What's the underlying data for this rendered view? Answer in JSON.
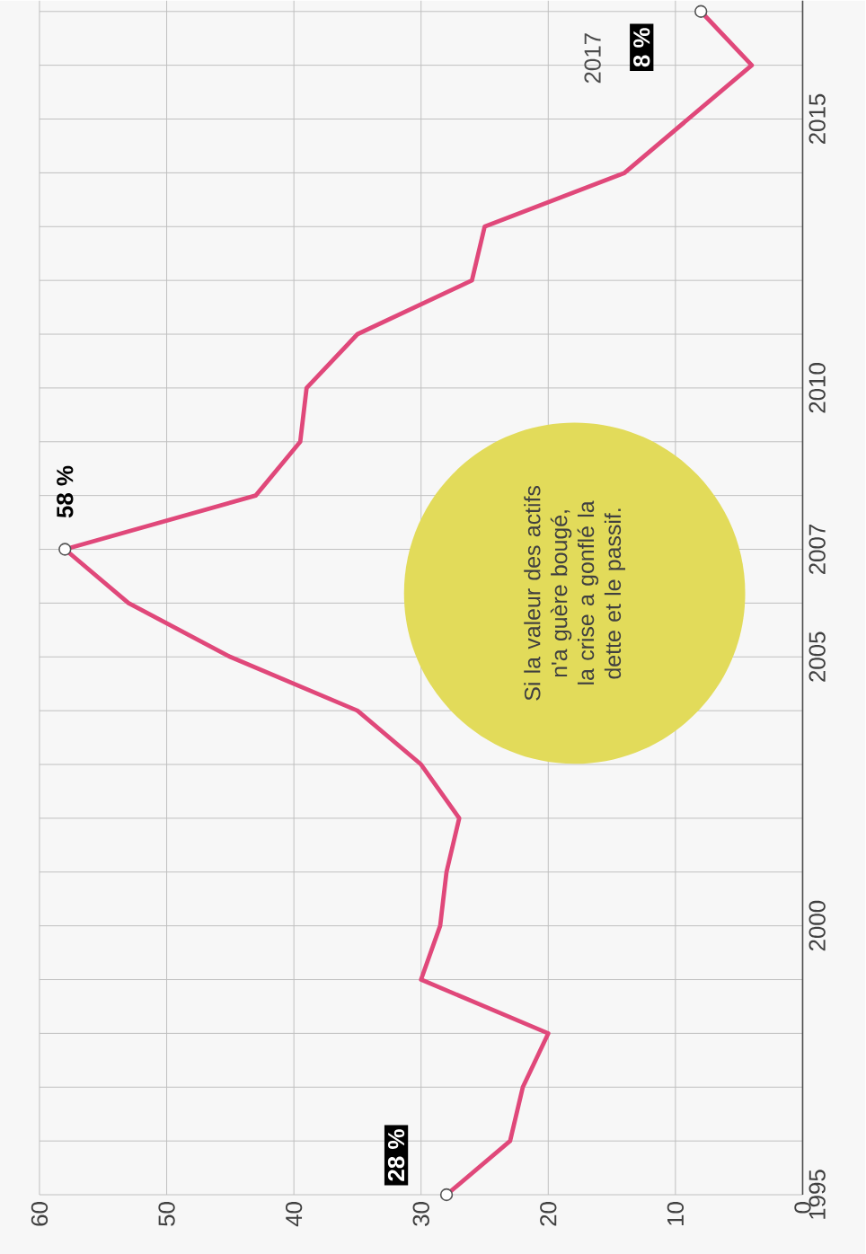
{
  "chart_data": {
    "type": "line",
    "x": [
      28,
      23,
      22,
      20,
      30,
      28.5,
      28,
      27,
      30,
      35,
      45,
      53,
      58,
      43,
      39.5,
      39,
      35,
      26,
      25,
      14,
      9,
      4,
      8
    ],
    "series": [
      {
        "color": "#e0487a",
        "values": [
          1995,
          1996,
          1997,
          1998,
          1999,
          2000,
          2001,
          2002,
          2003,
          2004,
          2005,
          2006,
          2007,
          2008,
          2009,
          2010,
          2011,
          2012,
          2013,
          2014,
          2015,
          2016,
          2017
        ]
      },
      {
        "type": "scatter",
        "x": [
          28,
          58,
          8
        ],
        "values": [
          1995,
          2007,
          2017
        ],
        "color": "#555555",
        "marker": "circle"
      }
    ],
    "xlim": [
      60,
      0
    ],
    "xticks": [
      60,
      50,
      40,
      30,
      20,
      10,
      0
    ],
    "ylim": [
      1995,
      2017.2
    ],
    "yticks": [
      1995,
      {
        "value": 1996,
        "label": null
      },
      {
        "value": 1997,
        "label": null
      },
      {
        "value": 1998,
        "label": null
      },
      {
        "value": 1999,
        "label": null
      },
      2000,
      {
        "value": 2001,
        "label": null
      },
      {
        "value": 2002,
        "label": null
      },
      {
        "value": 2003,
        "label": null
      },
      {
        "value": 2004,
        "label": null
      },
      2005,
      {
        "value": 2006,
        "label": null
      },
      2007,
      {
        "value": 2008,
        "label": null
      },
      {
        "value": 2009,
        "label": null
      },
      2010,
      {
        "value": 2011,
        "label": null
      },
      {
        "value": 2012,
        "label": null
      },
      {
        "value": 2013,
        "label": null
      },
      {
        "value": 2014,
        "label": null
      },
      2015,
      {
        "value": 2016,
        "label": null
      },
      {
        "value": 2017,
        "label": null
      }
    ],
    "grid": true,
    "annotations": [
      {
        "text": "28 %",
        "x": 28,
        "y": 1995
      },
      {
        "text": "58 %",
        "x": 58,
        "y": 2007
      },
      {
        "text": "8 %",
        "x": 8,
        "y": 2017
      },
      "2017",
      "Si la valeur des actifs n'a guère bougé, la crise a gonflé la dette et le passif."
    ]
  }
}
